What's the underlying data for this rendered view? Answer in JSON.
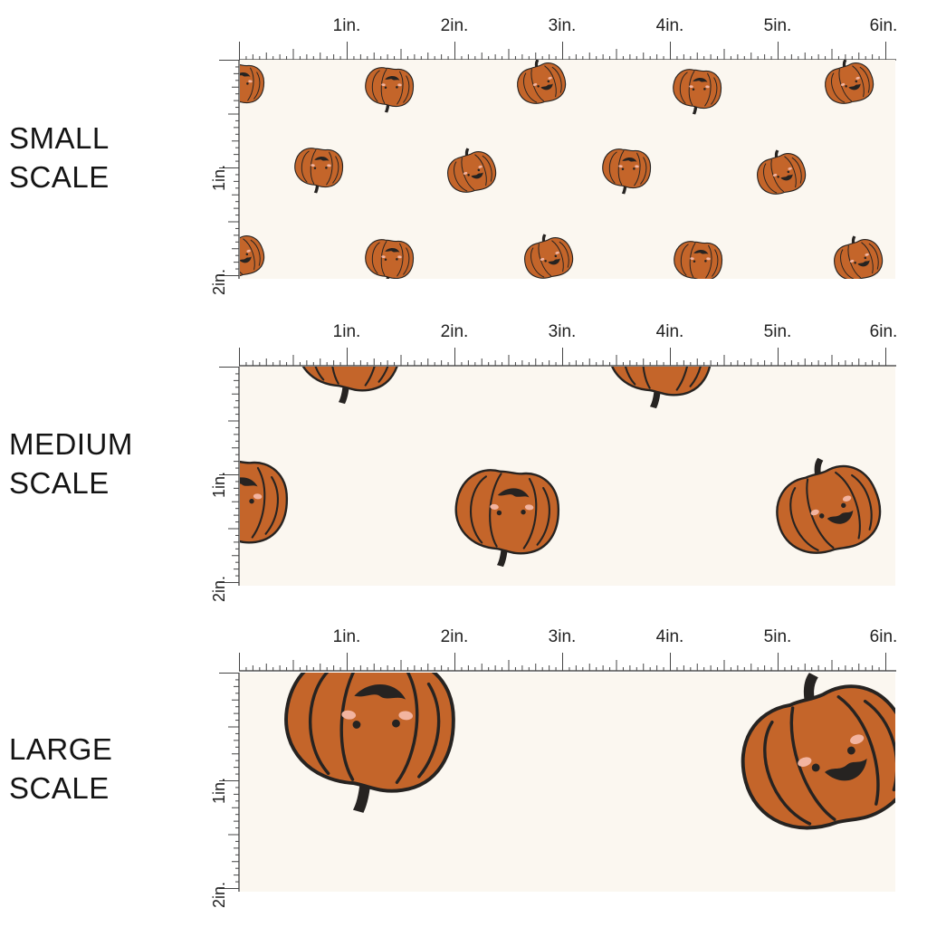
{
  "rows": [
    {
      "id": "small",
      "label_line1": "SMALL",
      "label_line2": "SCALE"
    },
    {
      "id": "medium",
      "label_line1": "MEDIUM",
      "label_line2": "SCALE"
    },
    {
      "id": "large",
      "label_line1": "LARGE",
      "label_line2": "SCALE"
    }
  ],
  "ruler": {
    "horizontal_labels": [
      "1in.",
      "2in.",
      "3in.",
      "4in.",
      "5in.",
      "6in."
    ],
    "vertical_labels": [
      "1in.",
      "2in."
    ]
  },
  "colors": {
    "background": "#fbf7f0",
    "pumpkin": "#c4652a",
    "outline": "#262321",
    "cheek": "#f2b4a0"
  },
  "pattern": {
    "motif": "smiling-pumpkin-icon"
  }
}
